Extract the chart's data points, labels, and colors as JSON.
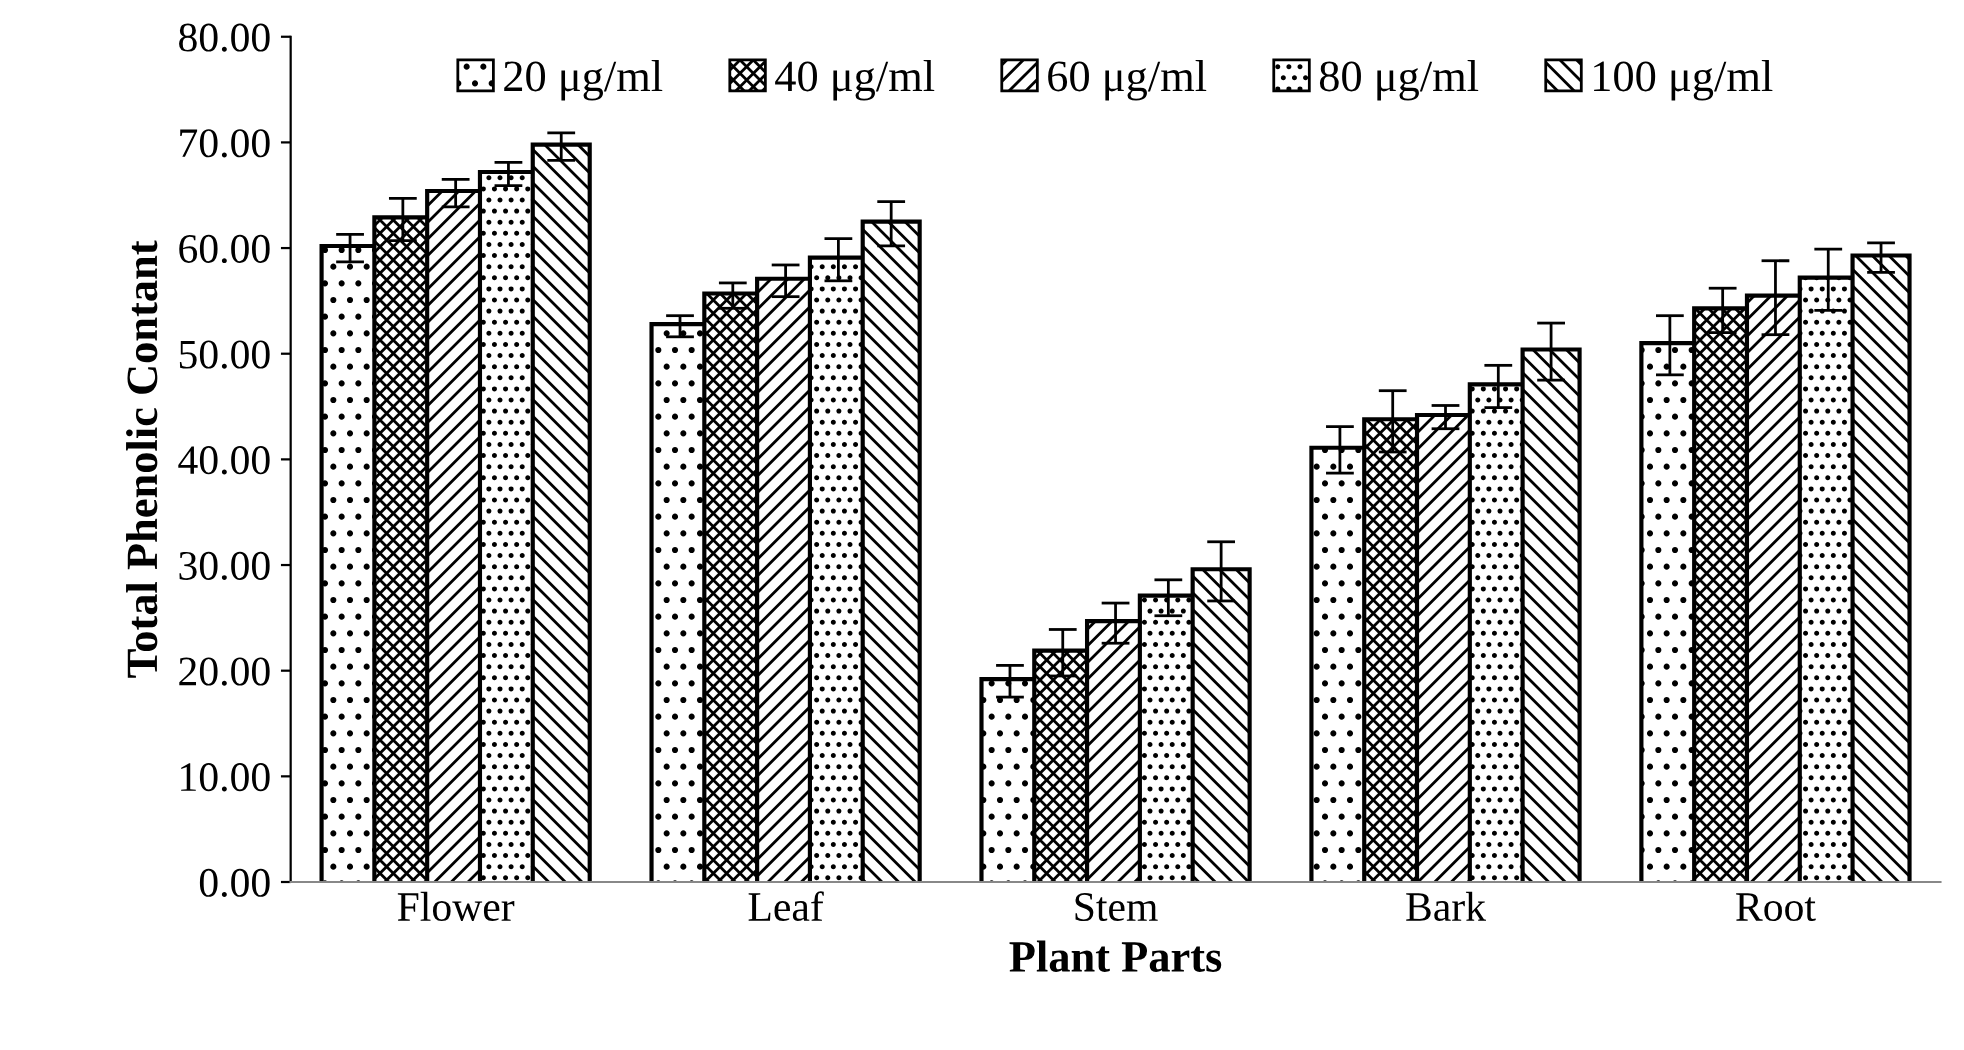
{
  "chart_data": {
    "type": "bar",
    "xlabel": "Plant Parts",
    "ylabel": "Total Phenolic Contant",
    "categories": [
      "Flower",
      "Leaf",
      "Stem",
      "Bark",
      "Root"
    ],
    "series": [
      {
        "name": "20 μg/ml",
        "color": "#ffffff",
        "values": [
          60.0,
          52.6,
          19.0,
          40.9,
          50.8
        ],
        "errors": [
          1.3,
          1.0,
          1.5,
          2.2,
          2.8
        ]
      },
      {
        "name": "40 μg/ml",
        "color": "#ffffff",
        "values": [
          62.7,
          55.5,
          21.7,
          43.6,
          54.1
        ],
        "errors": [
          2.0,
          1.2,
          2.2,
          2.9,
          2.1
        ]
      },
      {
        "name": "60 μg/ml",
        "color": "#ffffff",
        "values": [
          65.2,
          56.9,
          24.5,
          44.0,
          55.3
        ],
        "errors": [
          1.3,
          1.5,
          1.9,
          1.1,
          3.5
        ]
      },
      {
        "name": "80 μg/ml",
        "color": "#ffffff",
        "values": [
          67.0,
          58.9,
          26.9,
          46.9,
          57.0
        ],
        "errors": [
          1.1,
          2.0,
          1.7,
          2.0,
          2.9
        ]
      },
      {
        "name": "100 μg/ml",
        "color": "#ffffff",
        "values": [
          69.6,
          62.3,
          29.4,
          50.2,
          59.1
        ],
        "errors": [
          1.3,
          2.1,
          2.8,
          2.7,
          1.4
        ]
      }
    ],
    "ylim": [
      0,
      80
    ],
    "yticks": [
      {
        "value": 0,
        "label": "0.00"
      },
      {
        "value": 10,
        "label": "10.00"
      },
      {
        "value": 20,
        "label": "20.00"
      },
      {
        "value": 30,
        "label": "30.00"
      },
      {
        "value": 40,
        "label": "40.00"
      },
      {
        "value": 50,
        "label": "50.00"
      },
      {
        "value": 60,
        "label": "60.00"
      },
      {
        "value": 70,
        "label": "70.00"
      },
      {
        "value": 80,
        "label": "80.00"
      }
    ],
    "grid": false,
    "legend": "top"
  }
}
